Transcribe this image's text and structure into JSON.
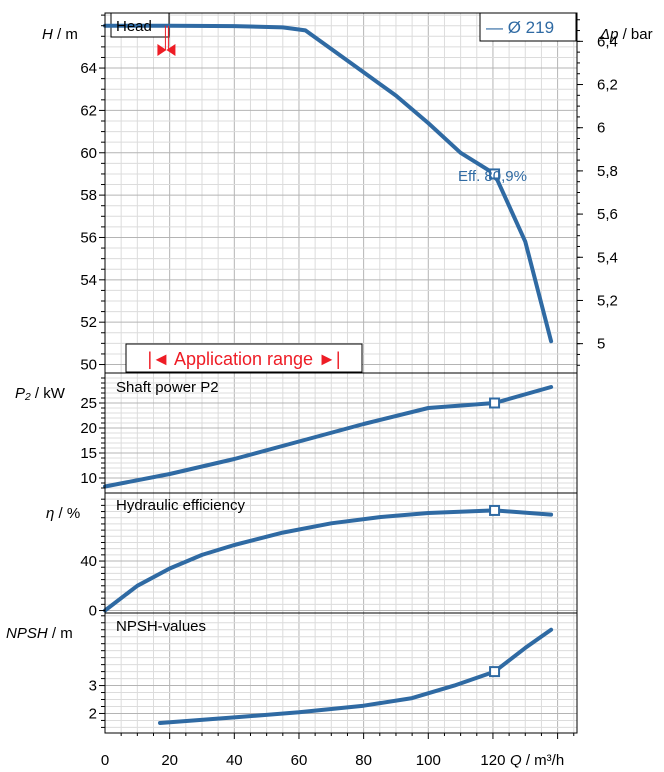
{
  "colors": {
    "curve": "#2f6aa3",
    "range": "#ee1c25",
    "grid": "#c4c4c4",
    "frame": "#000000"
  },
  "chart_data": [
    {
      "type": "line",
      "name": "head",
      "panel_title": "Head",
      "ylabel_italic": "H",
      "ylabel_unit": " / m",
      "y2label_italic": "Δp",
      "y2label_unit": " / bar",
      "ylim": [
        49.6,
        66.6
      ],
      "yticks": [
        50,
        52,
        54,
        56,
        58,
        60,
        62,
        64
      ],
      "y2ticks": [
        5,
        5.2,
        5.4,
        5.6,
        5.8,
        6,
        6.2,
        6.4
      ],
      "y2tick_labels": [
        "5",
        "5,2",
        "5,4",
        "5,6",
        "5,8",
        "6",
        "6,2",
        "6,4"
      ],
      "legend": "— Ø 219",
      "operating_label": "Eff.  80,9%",
      "application_range_label": "|◄ Application range ►|",
      "application_range": [
        0,
        87
      ],
      "min_flow_marker": 19,
      "operating_point": {
        "x": 120.5,
        "y": 59.0
      },
      "series": [
        {
          "x": [
            0,
            20,
            40,
            55,
            62,
            70,
            80,
            90,
            100,
            110,
            120.5,
            130,
            138
          ],
          "y": [
            66.0,
            66.0,
            65.98,
            65.92,
            65.78,
            64.9,
            63.8,
            62.7,
            61.4,
            60.0,
            59.0,
            55.8,
            51.1
          ]
        }
      ]
    },
    {
      "type": "line",
      "name": "power",
      "panel_title": "Shaft power P2",
      "ylabel_italic": "P₂",
      "ylabel_unit": " / kW",
      "ylim": [
        7,
        31
      ],
      "yticks": [
        10,
        15,
        20,
        25
      ],
      "operating_point": {
        "x": 120.5,
        "y": 25.0
      },
      "series": [
        {
          "x": [
            0,
            20,
            40,
            60,
            80,
            100,
            120.5,
            138
          ],
          "y": [
            8.3,
            10.8,
            13.8,
            17.3,
            20.8,
            24.0,
            25.0,
            28.2
          ]
        }
      ]
    },
    {
      "type": "line",
      "name": "efficiency",
      "panel_title": "Hydraulic efficiency",
      "ylabel_italic": "η",
      "ylabel_unit": " / %",
      "ylim": [
        -2,
        95
      ],
      "yticks": [
        0,
        40
      ],
      "operating_point": {
        "x": 120.5,
        "y": 80.9
      },
      "series": [
        {
          "x": [
            0,
            10,
            20,
            30,
            40,
            55,
            70,
            85,
            100,
            120.5,
            138
          ],
          "y": [
            0,
            20,
            34,
            45,
            53,
            63,
            70.5,
            75.5,
            78.8,
            80.9,
            77.5
          ]
        }
      ]
    },
    {
      "type": "line",
      "name": "npsh",
      "panel_title": "NPSH-values",
      "ylabel_italic": "NPSH",
      "ylabel_unit": " / m",
      "ylim": [
        1.3,
        5.6
      ],
      "yticks": [
        2,
        3
      ],
      "operating_point": {
        "x": 120.5,
        "y": 3.5
      },
      "series": [
        {
          "x": [
            17,
            40,
            60,
            80,
            95,
            108,
            120.5,
            130,
            138
          ],
          "y": [
            1.66,
            1.86,
            2.04,
            2.28,
            2.55,
            3.0,
            3.5,
            4.35,
            5.0
          ]
        }
      ]
    }
  ],
  "x_axis": {
    "xlim": [
      0,
      146
    ],
    "ticks": [
      0,
      20,
      40,
      60,
      80,
      100,
      120
    ],
    "xlabel_italic": "Q",
    "xlabel_unit": " / m³/h"
  }
}
